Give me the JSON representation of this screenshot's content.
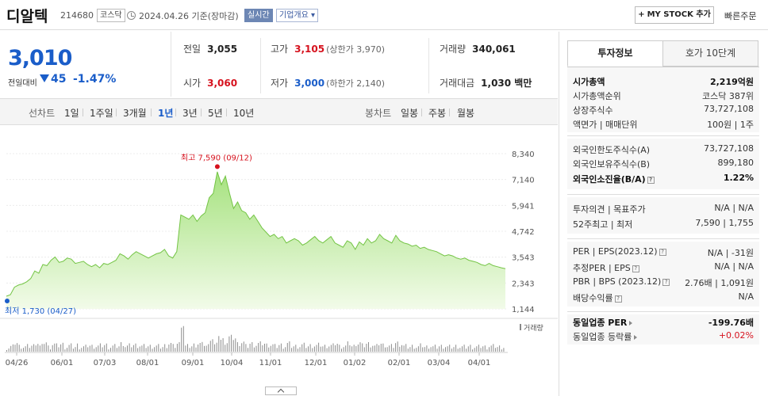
{
  "header": {
    "name": "디알텍",
    "code": "214680",
    "market": "코스닥",
    "date": "2024.04.26  기준(장마감)",
    "realtime": "실시간",
    "overview": "기업개요 ▾",
    "mystock": "MY STOCK 추가",
    "mystock_plus": "+",
    "fast_order": "빠른주문"
  },
  "price": {
    "current": "3,010",
    "change_label": "전일대비",
    "change": "45",
    "change_pct": "-1.47%"
  },
  "stats": {
    "prev_label": "전일",
    "prev": "3,055",
    "high_label": "고가",
    "high": "3,105",
    "high_limit": "(상한가 3,970)",
    "volume_label": "거래량",
    "volume": "340,061",
    "open_label": "시가",
    "open": "3,060",
    "low_label": "저가",
    "low": "3,000",
    "low_limit": "(하한가 2,140)",
    "amount_label": "거래대금",
    "amount": "1,030 백만"
  },
  "tabs": {
    "line_head": "선차트",
    "line_items": [
      "1일",
      "1주일",
      "3개월",
      "1년",
      "3년",
      "5년",
      "10년"
    ],
    "candle_head": "봉차트",
    "candle_items": [
      "일봉",
      "주봉",
      "월봉"
    ]
  },
  "chart_data": {
    "type": "area",
    "y_ticks": [
      "8,340",
      "7,140",
      "5,941",
      "4,742",
      "3,543",
      "2,343",
      "1,144"
    ],
    "ylim": [
      1144,
      8340
    ],
    "x_labels": [
      "04/26",
      "06/01",
      "07/03",
      "08/01",
      "09/01",
      "10/04",
      "11/01",
      "12/01",
      "01/02",
      "02/01",
      "03/04",
      "04/01"
    ],
    "high_label": "최고 7,590 (09/12)",
    "low_label": "최저 1,730 (04/27)",
    "high_value": 7590,
    "low_value": 1730,
    "volume_label": "거래량",
    "series": [
      {
        "values": [
          1730,
          1800,
          2150,
          2250,
          2300,
          2400,
          2550,
          2900,
          2800,
          3200,
          3150,
          3400,
          3550,
          3300,
          3350,
          3500,
          3450,
          3250,
          3300,
          3350,
          3200,
          3100,
          3200,
          3050,
          3250,
          3200,
          3300,
          3400,
          3700,
          3600,
          3450,
          3650,
          3800,
          3700,
          3600,
          3500,
          3600,
          3700,
          3750,
          3900,
          3600,
          3500,
          3800,
          5500,
          5400,
          5300,
          5500,
          5200,
          5450,
          5600,
          6300,
          6500,
          7500,
          6900,
          7300,
          6500,
          5800,
          6100,
          5700,
          5600,
          5300,
          5500,
          5200,
          4900,
          4700,
          4500,
          4600,
          4400,
          4500,
          4200,
          4300,
          4400,
          4300,
          4100,
          4200,
          4350,
          4500,
          4300,
          4200,
          4350,
          4500,
          4200,
          4100,
          4000,
          4300,
          4200,
          3900,
          4250,
          4100,
          4400,
          4200,
          4300,
          4600,
          4400,
          4300,
          4200,
          4550,
          4300,
          4200,
          4150,
          4050,
          4100,
          3950,
          4000,
          3900,
          3850,
          3800,
          3700,
          3600,
          3650,
          3600,
          3500,
          3450,
          3500,
          3400,
          3350,
          3300,
          3200,
          3150,
          3250,
          3150,
          3100,
          3050,
          3010
        ]
      }
    ]
  },
  "info": {
    "tab_active": "투자정보",
    "tab_other": "호가 10단계",
    "rows1": [
      {
        "k": "시가총액",
        "v": "2,219억원",
        "bold": true
      },
      {
        "k": "시가총액순위",
        "v": "코스닥 387위",
        "bold": false
      },
      {
        "k": "상장주식수",
        "v": "73,727,108",
        "bold": false
      },
      {
        "k": "액면가 | 매매단위",
        "v": "100원 | 1주",
        "bold": false
      }
    ],
    "rows2": [
      {
        "k": "외국인한도주식수(A)",
        "v": "73,727,108",
        "bold": false
      },
      {
        "k": "외국인보유주식수(B)",
        "v": "899,180",
        "bold": false
      },
      {
        "k": "외국인소진율(B/A)",
        "v": "1.22%",
        "bold": true
      }
    ],
    "rows3": [
      {
        "k": "투자의견 | 목표주가",
        "v": "N/A | N/A",
        "bold": false
      },
      {
        "k": "52주최고 | 최저",
        "v": "7,590 | 1,755",
        "bold": false
      }
    ],
    "rows4": [
      {
        "k": "PER | EPS(2023.12)",
        "v": "N/A | -31원",
        "bold": false
      },
      {
        "k": "추정PER | EPS",
        "v": "N/A | N/A",
        "bold": false
      },
      {
        "k": "PBR | BPS (2023.12)",
        "v": "2.76배 | 1,091원",
        "bold": false
      },
      {
        "k": "배당수익률",
        "v": "N/A",
        "bold": false
      }
    ],
    "rows5": [
      {
        "k": "동일업종 PER",
        "v": "-199.76배",
        "bold": true
      },
      {
        "k": "동일업종 등락률",
        "v": "+0.02%",
        "bold": false
      }
    ]
  }
}
